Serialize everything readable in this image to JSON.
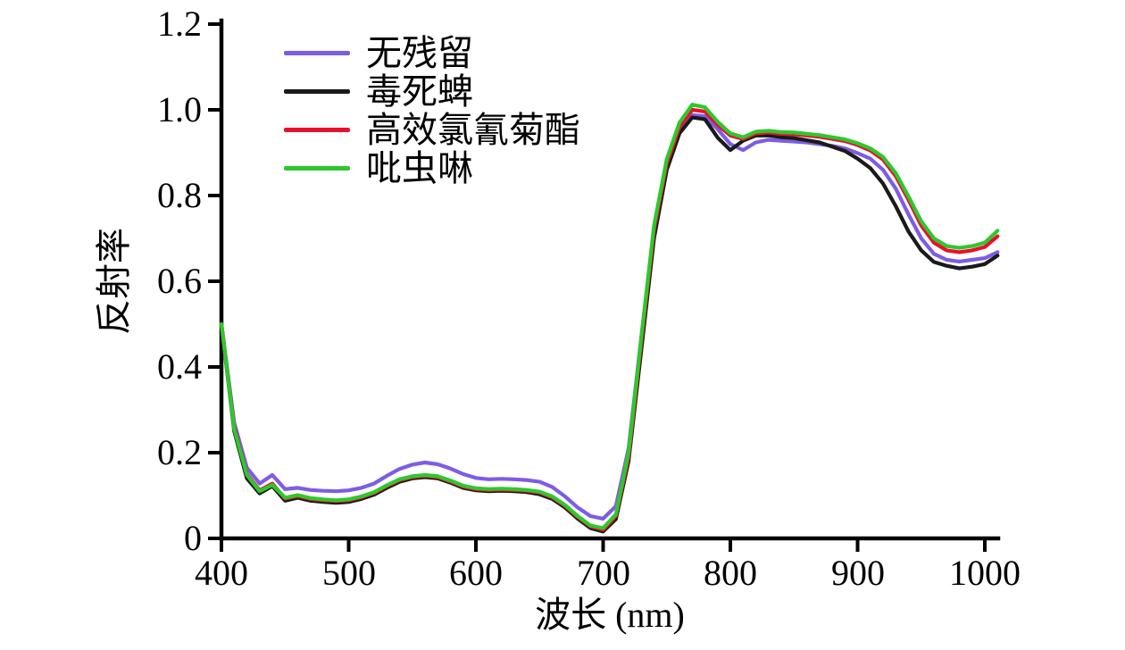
{
  "chart_data": {
    "type": "line",
    "title": "",
    "xlabel": "波长 (nm)",
    "ylabel": "反射率",
    "xlim": [
      400,
      1011
    ],
    "ylim": [
      0,
      1.2
    ],
    "grid": false,
    "legend_position": "upper-left-inside",
    "axis_color": "#000000",
    "x_tick_labels": [
      "400",
      "500",
      "600",
      "700",
      "800",
      "900",
      "1000"
    ],
    "x_ticks": [
      400,
      500,
      600,
      700,
      800,
      900,
      1000
    ],
    "y_tick_labels": [
      "0",
      "0.2",
      "0.4",
      "0.6",
      "0.8",
      "1.0",
      "1.2"
    ],
    "y_ticks": [
      0,
      0.2,
      0.4,
      0.6,
      0.8,
      1.0,
      1.2
    ],
    "x": [
      400,
      410,
      420,
      430,
      440,
      450,
      460,
      470,
      480,
      490,
      500,
      510,
      520,
      530,
      540,
      550,
      560,
      570,
      580,
      590,
      600,
      610,
      620,
      630,
      640,
      650,
      660,
      670,
      680,
      690,
      700,
      710,
      720,
      730,
      740,
      750,
      760,
      770,
      780,
      790,
      800,
      810,
      820,
      830,
      840,
      850,
      860,
      870,
      880,
      890,
      900,
      910,
      920,
      930,
      940,
      950,
      960,
      970,
      980,
      990,
      1000,
      1010
    ],
    "series": [
      {
        "name": "无残留",
        "color": "#7D5CE6",
        "values": [
          0.5,
          0.27,
          0.165,
          0.128,
          0.148,
          0.115,
          0.118,
          0.113,
          0.111,
          0.11,
          0.112,
          0.118,
          0.128,
          0.146,
          0.162,
          0.172,
          0.177,
          0.173,
          0.163,
          0.15,
          0.141,
          0.138,
          0.139,
          0.138,
          0.136,
          0.132,
          0.12,
          0.098,
          0.072,
          0.052,
          0.046,
          0.075,
          0.21,
          0.47,
          0.72,
          0.875,
          0.955,
          0.988,
          0.985,
          0.955,
          0.92,
          0.906,
          0.924,
          0.93,
          0.928,
          0.926,
          0.924,
          0.92,
          0.916,
          0.91,
          0.899,
          0.886,
          0.86,
          0.816,
          0.756,
          0.7,
          0.664,
          0.65,
          0.646,
          0.65,
          0.654,
          0.668
        ]
      },
      {
        "name": "毒死蜱",
        "color": "#1A1A1A",
        "values": [
          0.5,
          0.25,
          0.14,
          0.105,
          0.122,
          0.088,
          0.095,
          0.088,
          0.085,
          0.083,
          0.085,
          0.092,
          0.102,
          0.118,
          0.132,
          0.14,
          0.143,
          0.14,
          0.13,
          0.118,
          0.112,
          0.11,
          0.111,
          0.11,
          0.108,
          0.103,
          0.092,
          0.072,
          0.046,
          0.024,
          0.016,
          0.045,
          0.18,
          0.44,
          0.7,
          0.86,
          0.945,
          0.982,
          0.978,
          0.935,
          0.906,
          0.928,
          0.94,
          0.94,
          0.936,
          0.934,
          0.929,
          0.924,
          0.914,
          0.904,
          0.886,
          0.864,
          0.828,
          0.775,
          0.716,
          0.672,
          0.645,
          0.636,
          0.63,
          0.634,
          0.64,
          0.66
        ]
      },
      {
        "name": "高效氯氰菊酯",
        "color": "#E8112A",
        "values": [
          0.5,
          0.26,
          0.15,
          0.112,
          0.128,
          0.093,
          0.099,
          0.092,
          0.089,
          0.087,
          0.089,
          0.096,
          0.106,
          0.122,
          0.136,
          0.143,
          0.146,
          0.143,
          0.133,
          0.121,
          0.115,
          0.113,
          0.114,
          0.113,
          0.111,
          0.107,
          0.096,
          0.076,
          0.05,
          0.028,
          0.02,
          0.052,
          0.19,
          0.46,
          0.72,
          0.875,
          0.96,
          1.0,
          0.996,
          0.965,
          0.94,
          0.932,
          0.945,
          0.947,
          0.944,
          0.943,
          0.94,
          0.937,
          0.932,
          0.927,
          0.918,
          0.905,
          0.884,
          0.845,
          0.79,
          0.73,
          0.69,
          0.672,
          0.668,
          0.672,
          0.68,
          0.705
        ]
      },
      {
        "name": "吡虫啉",
        "color": "#2DC82D",
        "values": [
          0.5,
          0.255,
          0.148,
          0.11,
          0.125,
          0.095,
          0.101,
          0.094,
          0.091,
          0.089,
          0.091,
          0.098,
          0.108,
          0.124,
          0.138,
          0.145,
          0.148,
          0.145,
          0.135,
          0.123,
          0.117,
          0.115,
          0.116,
          0.115,
          0.113,
          0.109,
          0.098,
          0.078,
          0.052,
          0.03,
          0.024,
          0.056,
          0.2,
          0.47,
          0.73,
          0.885,
          0.97,
          1.012,
          1.006,
          0.972,
          0.945,
          0.936,
          0.949,
          0.951,
          0.948,
          0.947,
          0.944,
          0.941,
          0.936,
          0.931,
          0.922,
          0.91,
          0.89,
          0.852,
          0.798,
          0.74,
          0.7,
          0.682,
          0.678,
          0.682,
          0.69,
          0.718
        ]
      }
    ]
  }
}
